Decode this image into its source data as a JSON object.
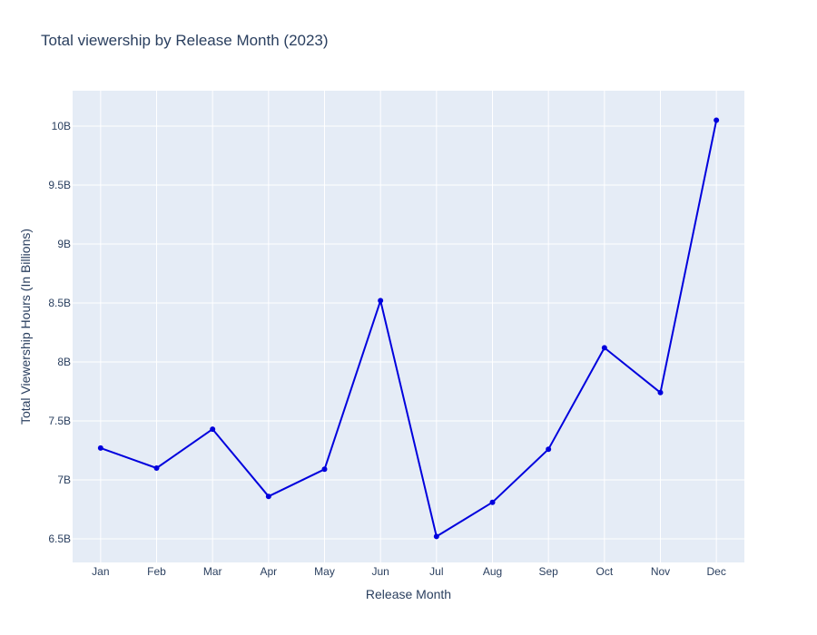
{
  "chart_data": {
    "type": "line",
    "title": "Total viewership by Release Month (2023)",
    "xlabel": "Release Month",
    "ylabel": "Total Viewership Hours (In Billions)",
    "categories": [
      "Jan",
      "Feb",
      "Mar",
      "Apr",
      "May",
      "Jun",
      "Jul",
      "Aug",
      "Sep",
      "Oct",
      "Nov",
      "Dec"
    ],
    "series": [
      {
        "values": [
          7.27,
          7.1,
          7.43,
          6.86,
          7.09,
          8.52,
          6.52,
          6.81,
          7.26,
          8.12,
          7.74,
          10.05
        ]
      }
    ],
    "ylim": [
      6.3,
      10.3
    ],
    "yticks": [
      6.5,
      7.0,
      7.5,
      8.0,
      8.5,
      9.0,
      9.5,
      10.0
    ],
    "ytick_labels": [
      "6.5B",
      "7B",
      "7.5B",
      "8B",
      "8.5B",
      "9B",
      "9.5B",
      "10B"
    ],
    "grid": true,
    "colors": {
      "plot_background": "#e5ecf6",
      "grid": "#ffffff",
      "line": "#0000dd",
      "text": "#2a3f5f"
    }
  }
}
